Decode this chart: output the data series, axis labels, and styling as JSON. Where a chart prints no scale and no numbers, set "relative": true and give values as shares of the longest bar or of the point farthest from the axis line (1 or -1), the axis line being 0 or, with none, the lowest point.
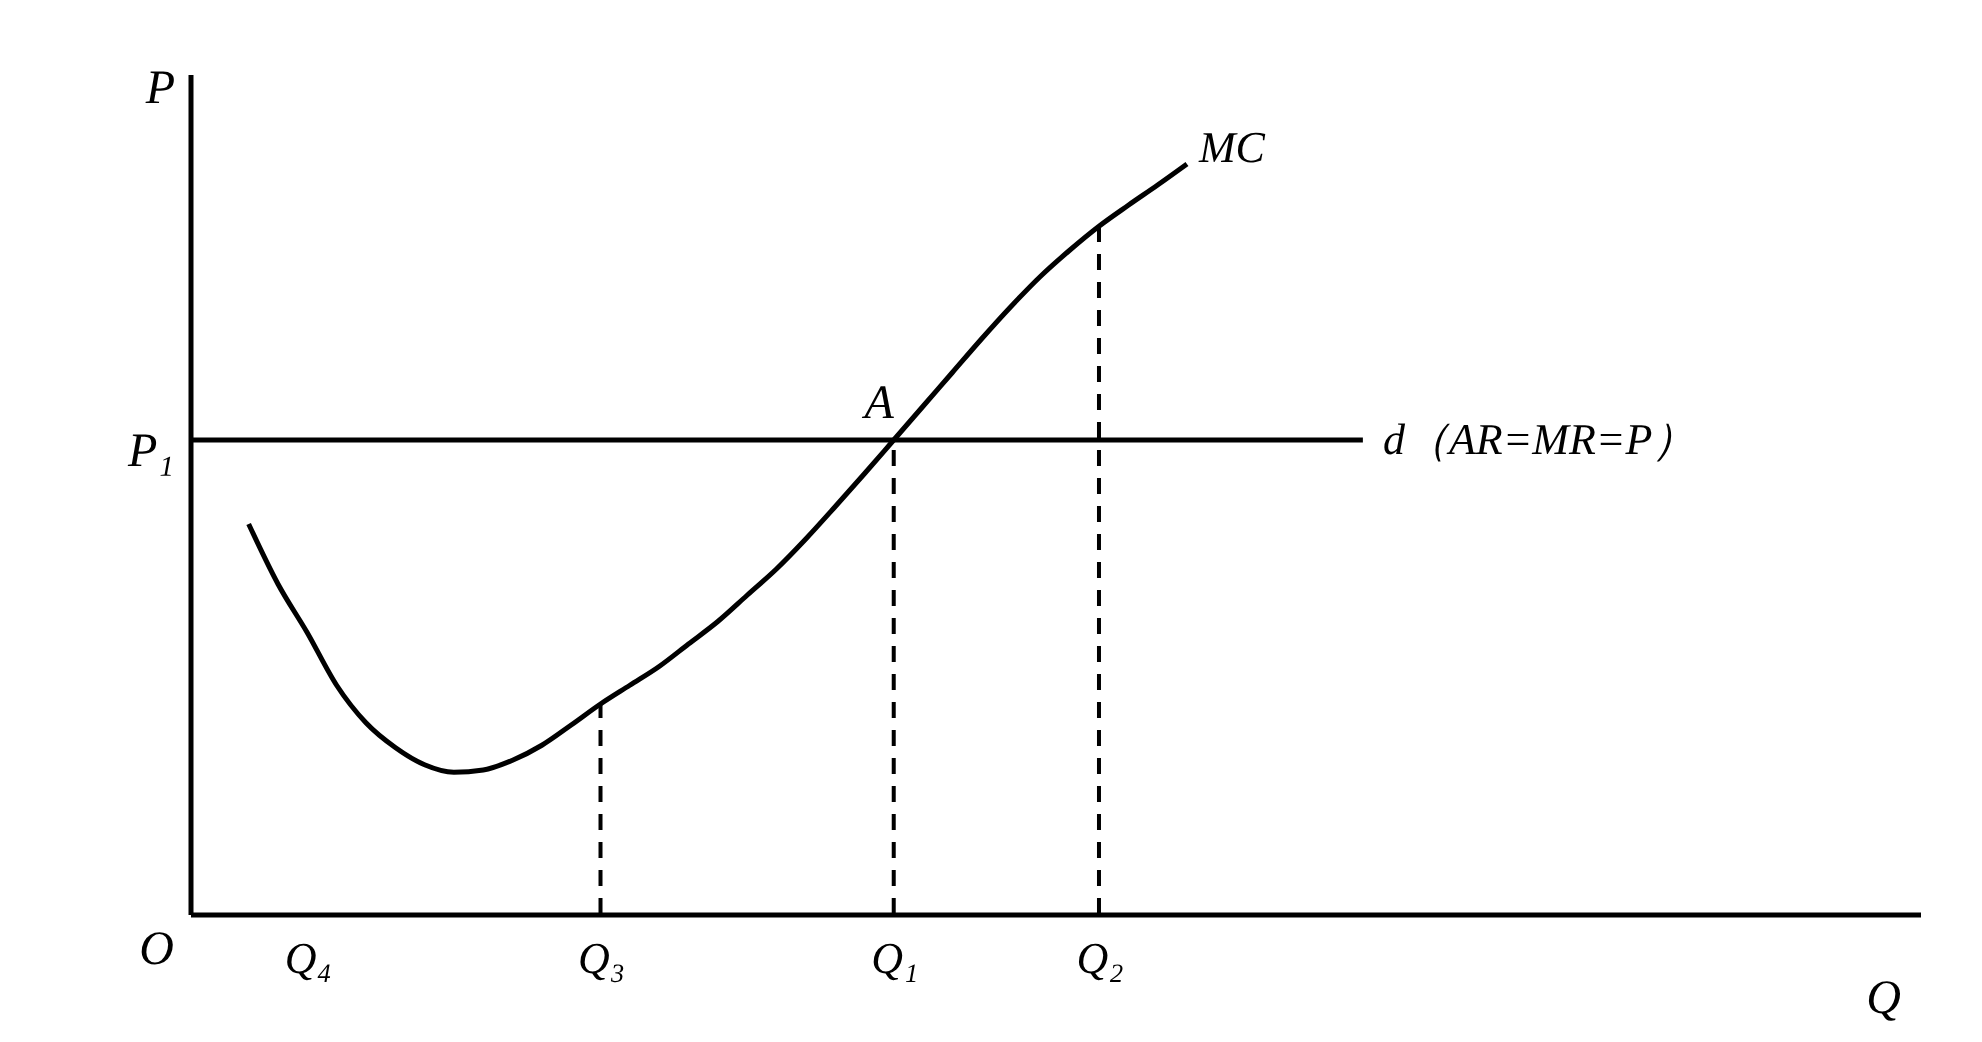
{
  "chart_data": {
    "type": "line",
    "relative": true,
    "xlabel": "Q",
    "ylabel": "P",
    "categories": [
      null,
      null,
      null,
      null,
      "Q₄",
      null,
      null,
      null,
      null,
      null,
      null,
      null,
      null,
      null,
      "Q₃",
      null,
      null,
      null,
      null,
      null,
      null,
      null,
      null,
      null,
      "Q₁",
      null,
      null,
      null,
      null,
      null,
      null,
      "Q₂",
      null,
      null,
      null,
      null,
      null,
      null,
      null,
      null,
      null,
      null,
      null,
      null,
      null,
      null,
      null,
      null,
      null,
      null,
      null,
      null,
      null,
      null,
      null,
      null,
      null,
      null,
      null,
      null
    ],
    "series": [
      {
        "name": "MC",
        "color": "#000000",
        "values": [
          null,
          null,
          0.52,
          0.44,
          0.375,
          0.305,
          0.255,
          0.222,
          0.199,
          0.189,
          0.192,
          0.205,
          0.225,
          0.252,
          0.28,
          0.305,
          0.33,
          0.36,
          0.39,
          0.425,
          0.46,
          0.5,
          0.543,
          0.587,
          0.632,
          0.677,
          0.722,
          0.767,
          0.81,
          0.85,
          0.885,
          0.917,
          0.945,
          0.972,
          1.0,
          null,
          null,
          null,
          null,
          null,
          null,
          null,
          null,
          null,
          null,
          null,
          null,
          null,
          null,
          null,
          null,
          null,
          null,
          null,
          null,
          null,
          null,
          null,
          null,
          null
        ]
      },
      {
        "name": "d（AR=MR=P）",
        "color": "#000000",
        "values": [
          0.632,
          0.632,
          0.632,
          0.632,
          0.632,
          0.632,
          0.632,
          0.632,
          0.632,
          0.632,
          0.632,
          0.632,
          0.632,
          0.632,
          0.632,
          0.632,
          0.632,
          0.632,
          0.632,
          0.632,
          0.632,
          0.632,
          0.632,
          0.632,
          0.632,
          0.632,
          0.632,
          0.632,
          0.632,
          0.632,
          0.632,
          0.632,
          0.632,
          0.632,
          0.632,
          0.632,
          0.632,
          0.632,
          0.632,
          0.632,
          0.632,
          null,
          null,
          null,
          null,
          null,
          null,
          null,
          null,
          null,
          null,
          null,
          null,
          null,
          null,
          null,
          null,
          null,
          null,
          null
        ]
      }
    ],
    "ref_lines": [
      {
        "axis": "x",
        "value": "Q₃",
        "line_style": "dashed",
        "color": "#000000"
      },
      {
        "axis": "x",
        "value": "Q₁",
        "line_style": "dashed",
        "color": "#000000"
      },
      {
        "axis": "x",
        "value": "Q₂",
        "line_style": "dashed",
        "color": "#000000"
      }
    ],
    "annotations": [
      {
        "text": "A",
        "x": "Q₁",
        "y": 0.632
      },
      "P₁",
      "O"
    ],
    "line_style": "solid"
  }
}
